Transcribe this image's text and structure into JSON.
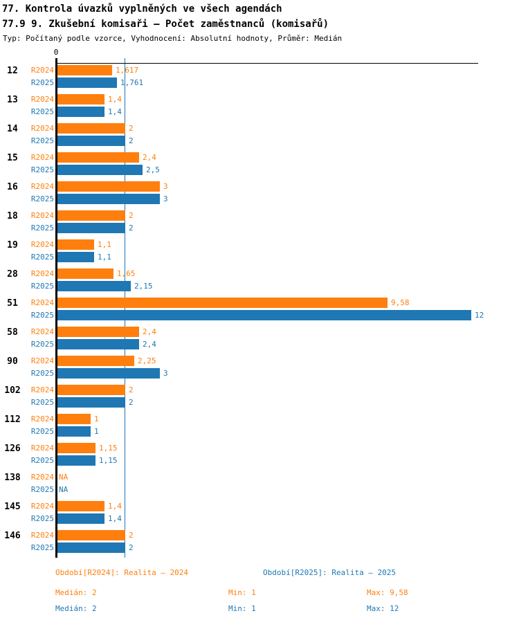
{
  "header": {
    "title1": "77. Kontrola úvazků vyplněných ve všech agendách",
    "title2": "77.9 9. Zkušební komisaři – Počet zaměstnanců (komisařů)",
    "meta": "Typ: Počítaný podle vzorce, Vyhodnocení: Absolutní hodnoty, Průměr: Medián"
  },
  "colors": {
    "r2024": "#FF7F0E",
    "r2025": "#1F77B4",
    "axis": "#000000",
    "median_line": "#1F77B4"
  },
  "chart_data": {
    "type": "bar",
    "orientation": "horizontal",
    "title": "77.9 9. Zkušební komisaři – Počet zaměstnanců (komisařů)",
    "zero_label": "0",
    "xlim": [
      0,
      12.2
    ],
    "median_line_value": 2,
    "grid": false,
    "categories": [
      "12",
      "13",
      "14",
      "15",
      "16",
      "18",
      "19",
      "28",
      "51",
      "58",
      "90",
      "102",
      "112",
      "126",
      "138",
      "145",
      "146"
    ],
    "series": [
      {
        "name": "R2024",
        "color": "#FF7F0E",
        "values": [
          1.617,
          1.4,
          2,
          2.4,
          3,
          2,
          1.1,
          1.65,
          9.58,
          2.4,
          2.25,
          2,
          1,
          1.15,
          null,
          1.4,
          2
        ],
        "labels": [
          "1,617",
          "1,4",
          "2",
          "2,4",
          "3",
          "2",
          "1,1",
          "1,65",
          "9,58",
          "2,4",
          "2,25",
          "2",
          "1",
          "1,15",
          "NA",
          "1,4",
          "2"
        ]
      },
      {
        "name": "R2025",
        "color": "#1F77B4",
        "values": [
          1.761,
          1.4,
          2,
          2.5,
          3,
          2,
          1.1,
          2.15,
          12,
          2.4,
          3,
          2,
          1,
          1.15,
          null,
          1.4,
          2
        ],
        "labels": [
          "1,761",
          "1,4",
          "2",
          "2,5",
          "3",
          "2",
          "1,1",
          "2,15",
          "12",
          "2,4",
          "3",
          "2",
          "1",
          "1,15",
          "NA",
          "1,4",
          "2"
        ]
      }
    ]
  },
  "legend": {
    "r2024": "Období[R2024]: Realita – 2024",
    "r2025": "Období[R2025]: Realita – 2025"
  },
  "stats": {
    "r2024": {
      "median": "Medián: 2",
      "min": "Min: 1",
      "max": "Max: 9,58"
    },
    "r2025": {
      "median": "Medián: 2",
      "min": "Min: 1",
      "max": "Max: 12"
    }
  }
}
